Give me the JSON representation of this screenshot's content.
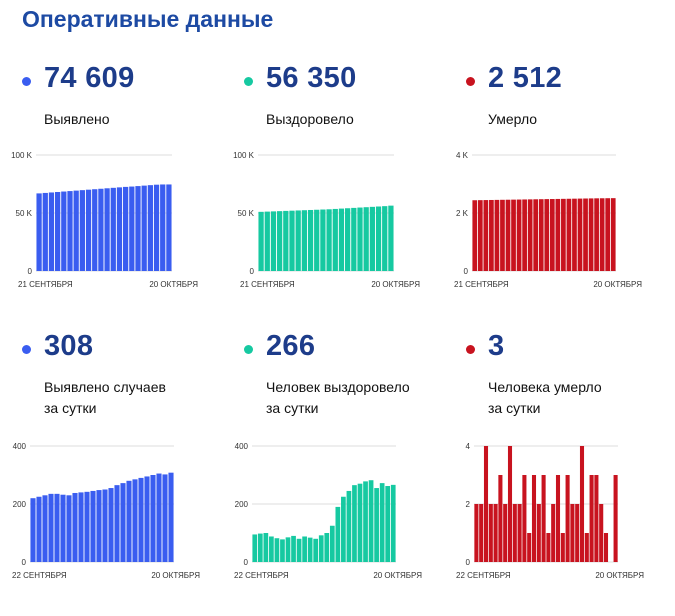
{
  "title": "Оперативные данные",
  "panels": [
    {
      "value": "74 609",
      "label_lines": [
        "Выявлено"
      ],
      "color": "#3a5df0"
    },
    {
      "value": "56 350",
      "label_lines": [
        "Выздоровело"
      ],
      "color": "#16c9a1"
    },
    {
      "value": "2 512",
      "label_lines": [
        "Умерло"
      ],
      "color": "#c8131f"
    },
    {
      "value": "308",
      "label_lines": [
        "Выявлено случаев",
        "за сутки"
      ],
      "color": "#3a5df0"
    },
    {
      "value": "266",
      "label_lines": [
        "Человек выздоровело",
        "за сутки"
      ],
      "color": "#16c9a1"
    },
    {
      "value": "3",
      "label_lines": [
        "Человека умерло",
        "за сутки"
      ],
      "color": "#c8131f"
    }
  ],
  "chart_data": [
    {
      "type": "bar",
      "x_start_label": "21 СЕНТЯБРЯ",
      "x_end_label": "20 ОКТЯБРЯ",
      "yticks": [
        {
          "v": 0,
          "t": "0"
        },
        {
          "v": 50000,
          "t": "50 K"
        },
        {
          "v": 100000,
          "t": "100 K"
        }
      ],
      "ylim": [
        0,
        100000
      ],
      "values": [
        66900,
        67300,
        67700,
        68100,
        68500,
        68900,
        69300,
        69700,
        70100,
        70500,
        70900,
        71300,
        71700,
        72100,
        72500,
        72800,
        73200,
        73600,
        74000,
        74400,
        74600,
        74609
      ]
    },
    {
      "type": "bar",
      "x_start_label": "21 СЕНТЯБРЯ",
      "x_end_label": "20 ОКТЯБРЯ",
      "yticks": [
        {
          "v": 0,
          "t": "0"
        },
        {
          "v": 50000,
          "t": "50 K"
        },
        {
          "v": 100000,
          "t": "100 K"
        }
      ],
      "ylim": [
        0,
        100000
      ],
      "values": [
        51000,
        51200,
        51400,
        51600,
        51800,
        52000,
        52200,
        52400,
        52600,
        52800,
        53000,
        53200,
        53500,
        53800,
        54100,
        54400,
        54700,
        55000,
        55300,
        55600,
        55900,
        56350
      ]
    },
    {
      "type": "bar",
      "x_start_label": "21 СЕНТЯБРЯ",
      "x_end_label": "20 ОКТЯБРЯ",
      "yticks": [
        {
          "v": 0,
          "t": "0"
        },
        {
          "v": 2000,
          "t": "2 K"
        },
        {
          "v": 4000,
          "t": "4 K"
        }
      ],
      "ylim": [
        0,
        4000
      ],
      "values": [
        2440,
        2443,
        2446,
        2449,
        2452,
        2455,
        2458,
        2461,
        2464,
        2467,
        2470,
        2473,
        2476,
        2479,
        2482,
        2485,
        2488,
        2491,
        2494,
        2497,
        2500,
        2503,
        2506,
        2508,
        2510,
        2512
      ]
    },
    {
      "type": "bar",
      "x_start_label": "22 СЕНТЯБРЯ",
      "x_end_label": "20 ОКТЯБРЯ",
      "yticks": [
        {
          "v": 0,
          "t": "0"
        },
        {
          "v": 200,
          "t": "200"
        },
        {
          "v": 400,
          "t": "400"
        }
      ],
      "ylim": [
        0,
        400
      ],
      "values": [
        220,
        225,
        230,
        235,
        235,
        232,
        230,
        238,
        240,
        242,
        245,
        248,
        250,
        255,
        265,
        272,
        280,
        285,
        290,
        295,
        300,
        305,
        302,
        308
      ]
    },
    {
      "type": "bar",
      "x_start_label": "22 СЕНТЯБРЯ",
      "x_end_label": "20 ОКТЯБРЯ",
      "yticks": [
        {
          "v": 0,
          "t": "0"
        },
        {
          "v": 200,
          "t": "200"
        },
        {
          "v": 400,
          "t": "400"
        }
      ],
      "ylim": [
        0,
        400
      ],
      "values": [
        95,
        98,
        100,
        88,
        82,
        78,
        85,
        90,
        80,
        88,
        84,
        80,
        92,
        100,
        125,
        190,
        225,
        245,
        265,
        270,
        278,
        282,
        255,
        272,
        262,
        266
      ]
    },
    {
      "type": "bar",
      "x_start_label": "22 СЕНТЯБРЯ",
      "x_end_label": "20 ОКТЯБРЯ",
      "yticks": [
        {
          "v": 0,
          "t": "0"
        },
        {
          "v": 2,
          "t": "2"
        },
        {
          "v": 4,
          "t": "4"
        }
      ],
      "ylim": [
        0,
        4
      ],
      "values": [
        2,
        2,
        4,
        2,
        2,
        3,
        2,
        4,
        2,
        2,
        3,
        1,
        3,
        2,
        3,
        1,
        2,
        3,
        1,
        3,
        2,
        2,
        4,
        1,
        3,
        3,
        2,
        1,
        0,
        3
      ]
    }
  ]
}
